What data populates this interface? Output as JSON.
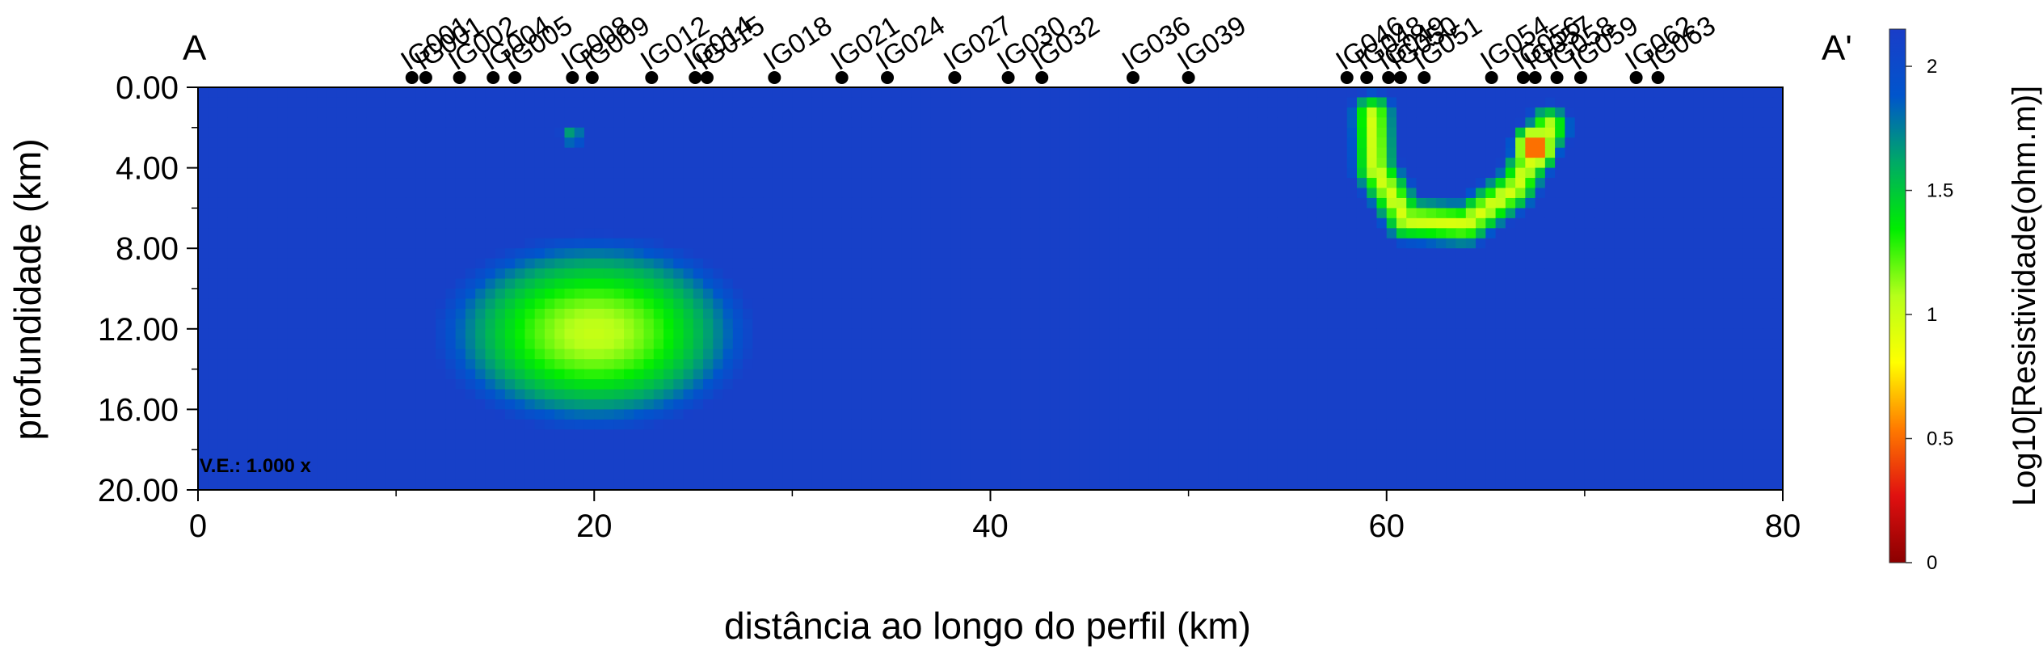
{
  "chart_data": {
    "type": "heatmap",
    "title": "",
    "xlabel": "distância ao longo do perfil (km)",
    "ylabel": "profundidade (km)",
    "xlim": [
      0,
      80
    ],
    "ylim": [
      0,
      20
    ],
    "y_inverted": true,
    "xticks": [
      "0",
      "20",
      "40",
      "60",
      "80"
    ],
    "xtick_values": [
      0,
      20,
      40,
      60,
      80
    ],
    "yticks": [
      "0.00",
      "4.00",
      "8.00",
      "12.00",
      "16.00",
      "20.00"
    ],
    "ytick_values": [
      0,
      4,
      8,
      12,
      16,
      20
    ],
    "corner_left": "A",
    "corner_right": "A'",
    "annotation": "V.E.: 1.000 x",
    "colorbar": {
      "label": "Log10[Resistividade(ohm.m)]",
      "range": [
        0,
        2.15
      ],
      "ticks": [
        "0",
        "0.5",
        "1",
        "1.5",
        "2"
      ],
      "tick_values": [
        0,
        0.5,
        1,
        1.5,
        2
      ],
      "colors": [
        "#8b0000",
        "#e01010",
        "#ff7a00",
        "#ffff00",
        "#b6ff1a",
        "#00ee00",
        "#00aa66",
        "#0055cc",
        "#1a3dc8"
      ]
    },
    "background_value": 2.12,
    "stations": [
      {
        "name": "IG001",
        "x": 10.8
      },
      {
        "name": "IG001",
        "x": 11.5
      },
      {
        "name": "IG002",
        "x": 13.2
      },
      {
        "name": "IG004",
        "x": 14.9
      },
      {
        "name": "IG005",
        "x": 16.0
      },
      {
        "name": "IG008",
        "x": 18.9
      },
      {
        "name": "IG009",
        "x": 19.9
      },
      {
        "name": "IG012",
        "x": 22.9
      },
      {
        "name": "IG014",
        "x": 25.1
      },
      {
        "name": "IG015",
        "x": 25.7
      },
      {
        "name": "IG018",
        "x": 29.1
      },
      {
        "name": "IG021",
        "x": 32.5
      },
      {
        "name": "IG024",
        "x": 34.8
      },
      {
        "name": "IG027",
        "x": 38.2
      },
      {
        "name": "IG030",
        "x": 40.9
      },
      {
        "name": "IG032",
        "x": 42.6
      },
      {
        "name": "IG036",
        "x": 47.2
      },
      {
        "name": "IG039",
        "x": 50.0
      },
      {
        "name": "IG046",
        "x": 58.0
      },
      {
        "name": "IG048",
        "x": 59.0
      },
      {
        "name": "IG049",
        "x": 60.1
      },
      {
        "name": "IG050",
        "x": 60.7
      },
      {
        "name": "IG051",
        "x": 61.9
      },
      {
        "name": "IG054",
        "x": 65.3
      },
      {
        "name": "IG056",
        "x": 66.9
      },
      {
        "name": "IG057",
        "x": 67.5
      },
      {
        "name": "IG058",
        "x": 68.6
      },
      {
        "name": "IG059",
        "x": 69.8
      },
      {
        "name": "IG062",
        "x": 72.6
      },
      {
        "name": "IG063",
        "x": 73.7
      }
    ],
    "anomalies": [
      {
        "name": "conductor-west-large",
        "cx": 20.0,
        "cy": 12.2,
        "rx": 8.2,
        "ry": 5.0,
        "min_value": 1.02,
        "power": 1.6
      },
      {
        "name": "conductor-west-small",
        "cx": 18.9,
        "cy": 2.4,
        "rx": 0.7,
        "ry": 0.6,
        "min_value": 1.55,
        "power": 1.5
      },
      {
        "name": "conductor-east-arc",
        "path": [
          [
            59.3,
            1.4
          ],
          [
            59.4,
            4.0
          ],
          [
            61.0,
            6.6
          ],
          [
            64.0,
            6.8
          ],
          [
            66.5,
            5.0
          ],
          [
            68.2,
            2.0
          ]
        ],
        "width": 1.3,
        "min_value": 0.95,
        "power": 1.3
      },
      {
        "name": "conductor-east-core",
        "cx": 67.5,
        "cy": 3.0,
        "rx": 1.4,
        "ry": 1.5,
        "min_value": 0.15,
        "power": 1.2
      }
    ]
  }
}
